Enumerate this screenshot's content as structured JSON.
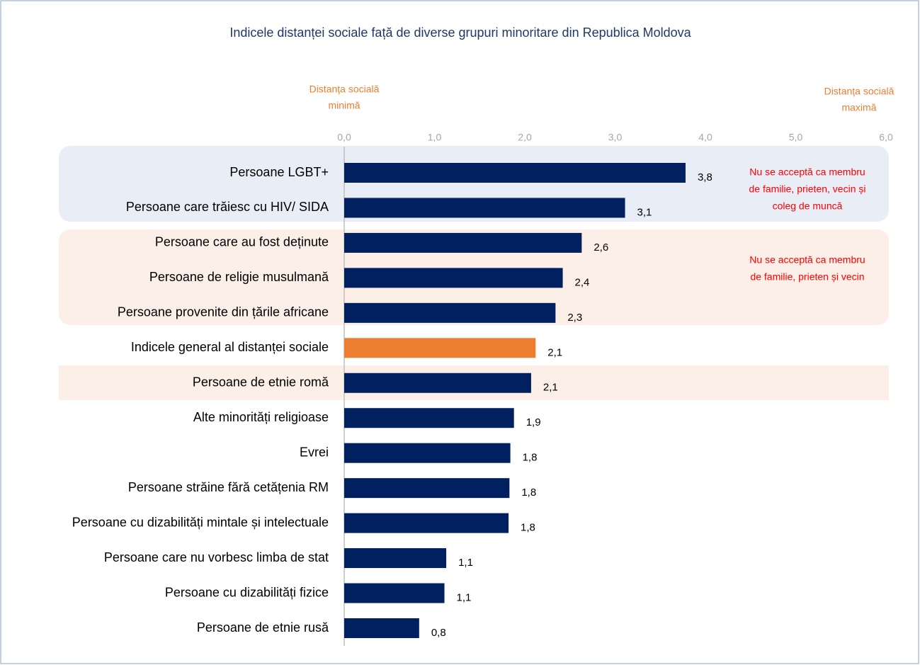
{
  "chart_data": {
    "type": "barh",
    "title": "Indicele distanței sociale față de diverse grupuri minoritare din Republica Moldova",
    "axis_note_left": [
      "Distanța socială",
      "minimă"
    ],
    "axis_note_right": [
      "Distanța socială",
      "maximă"
    ],
    "categories": [
      "Persoane LGBT+",
      "Persoane care trăiesc cu HIV/ SIDA",
      "Persoane care au fost deținute",
      "Persoane de religie musulmană",
      "Persoane provenite din țările africane",
      "Indicele general al distanței sociale",
      "Persoane de etnie romă",
      "Alte minorități religioase",
      "Evrei",
      "Persoane străine fără cetățenia RM",
      "Persoane cu dizabilități mintale și intelectuale",
      "Persoane care nu vorbesc limba de stat",
      "Persoane cu dizabilități fizice",
      "Persoane de etnie rusă"
    ],
    "values": [
      3.78,
      3.11,
      2.63,
      2.42,
      2.34,
      2.12,
      2.07,
      1.88,
      1.84,
      1.83,
      1.82,
      1.13,
      1.11,
      0.83
    ],
    "value_labels": [
      "3,8",
      "3,1",
      "2,6",
      "2,4",
      "2,3",
      "2,1",
      "2,1",
      "1,9",
      "1,8",
      "1,8",
      "1,8",
      "1,1",
      "1,1",
      "0,8"
    ],
    "colors": [
      "#002060",
      "#002060",
      "#002060",
      "#002060",
      "#002060",
      "#ed7d31",
      "#002060",
      "#002060",
      "#002060",
      "#002060",
      "#002060",
      "#002060",
      "#002060",
      "#002060"
    ],
    "xlim": [
      0,
      6
    ],
    "xticks": [
      {
        "value": 0,
        "label": "0,0"
      },
      {
        "value": 1,
        "label": "1,0"
      },
      {
        "value": 2,
        "label": "2,0"
      },
      {
        "value": 3,
        "label": "3,0"
      },
      {
        "value": 4,
        "label": "4,0"
      },
      {
        "value": 5,
        "label": "5,0"
      },
      {
        "value": 6,
        "label": "6,0"
      }
    ],
    "annotations": [
      [
        "Nu se acceptă ca membru",
        "de familie, prieten, vecin și",
        "coleg de muncă"
      ],
      [
        "Nu se acceptă ca membru",
        "de familie, prieten și vecin"
      ]
    ]
  }
}
